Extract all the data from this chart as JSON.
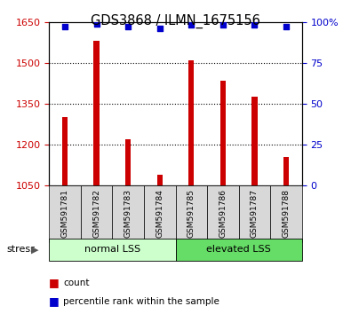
{
  "title": "GDS3868 / ILMN_1675156",
  "categories": [
    "GSM591781",
    "GSM591782",
    "GSM591783",
    "GSM591784",
    "GSM591785",
    "GSM591786",
    "GSM591787",
    "GSM591788"
  ],
  "counts": [
    1300,
    1580,
    1220,
    1090,
    1510,
    1435,
    1375,
    1155
  ],
  "percentile_ranks": [
    97,
    99,
    97,
    96,
    98,
    98,
    98,
    97
  ],
  "ylim_left": [
    1050,
    1650
  ],
  "ylim_right": [
    0,
    100
  ],
  "yticks_left": [
    1050,
    1200,
    1350,
    1500,
    1650
  ],
  "yticks_right": [
    0,
    25,
    50,
    75,
    100
  ],
  "bar_color": "#cc0000",
  "dot_color": "#0000cc",
  "left_tick_color": "#cc0000",
  "right_tick_color": "#0000cc",
  "group1_label": "normal LSS",
  "group2_label": "elevated LSS",
  "group1_color": "#ccffcc",
  "group2_color": "#66dd66",
  "stress_label": "stress",
  "legend_count_label": "count",
  "legend_pct_label": "percentile rank within the sample",
  "bar_width": 0.18,
  "bg_plot_color": "#ffffff",
  "grid_yticks": [
    1200,
    1350,
    1500
  ]
}
